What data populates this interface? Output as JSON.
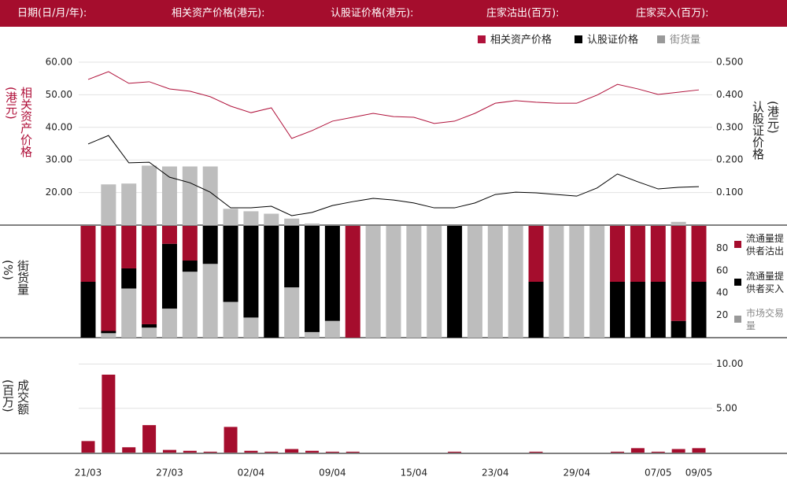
{
  "header": {
    "labels": [
      "日期(日/月/年):",
      "相关资产价格(港元):",
      "认股证价格(港元):",
      "庄家沽出(百万):",
      "庄家买入(百万):"
    ]
  },
  "chart_data": [
    {
      "type": "line",
      "ylabel": "相关资产价格(港元)",
      "y2label": "认股证价格(港元)",
      "ylim": [
        10,
        60
      ],
      "yticks": [
        {
          "value": 20,
          "label": "20.00"
        },
        {
          "value": 30,
          "label": "30.00"
        },
        {
          "value": 40,
          "label": "40.00"
        },
        {
          "value": 50,
          "label": "50.00"
        },
        {
          "value": 60,
          "label": "60.00"
        }
      ],
      "y2lim": [
        0,
        0.5
      ],
      "y2ticks": [
        {
          "value": 0.1,
          "label": "0.100"
        },
        {
          "value": 0.2,
          "label": "0.200"
        },
        {
          "value": 0.3,
          "label": "0.300"
        },
        {
          "value": 0.4,
          "label": "0.400"
        },
        {
          "value": 0.5,
          "label": "0.500"
        }
      ],
      "y3lim": [
        0,
        100
      ],
      "grid": true,
      "legend": "top-right",
      "series": [
        {
          "name": "相关资产价格",
          "color": "#b0123b",
          "values": [
            54.7,
            57.1,
            53.5,
            54.0,
            51.8,
            51.1,
            49.4,
            46.5,
            44.5,
            46.0,
            36.6,
            39.0,
            41.9,
            43.1,
            44.3,
            43.3,
            43.1,
            41.2,
            41.9,
            44.3,
            47.4,
            48.2,
            47.7,
            47.4,
            47.4,
            49.9,
            53.2,
            51.8,
            50.1,
            50.8,
            51.5
          ]
        },
        {
          "name": "认股证价格",
          "color": "#000000",
          "axis": "y2",
          "values": [
            0.249,
            0.275,
            0.191,
            0.193,
            0.147,
            0.13,
            0.101,
            0.053,
            0.053,
            0.058,
            0.029,
            0.039,
            0.06,
            0.072,
            0.082,
            0.077,
            0.068,
            0.053,
            0.053,
            0.068,
            0.094,
            0.101,
            0.099,
            0.094,
            0.089,
            0.114,
            0.157,
            0.133,
            0.111,
            0.116,
            0.118
          ]
        },
        {
          "name": "街货量",
          "color": "#bdbdbd",
          "type": "bar",
          "axis": "y3",
          "values": [
            0,
            25,
            25.5,
            36.5,
            36,
            36,
            36,
            10,
            8.5,
            7,
            4,
            1,
            0,
            0,
            0,
            0,
            0,
            0,
            0,
            0,
            0,
            0,
            0,
            0,
            0,
            0,
            0,
            0,
            0,
            2,
            0
          ]
        }
      ]
    },
    {
      "type": "stacked_bar",
      "ylabel": "街货量(%)",
      "ylim": [
        0,
        100
      ],
      "yticks": [
        20,
        40,
        60,
        80
      ],
      "legend": "right",
      "series": [
        {
          "name": "流通量提供者沽出",
          "color": "#a50d2d",
          "values": [
            50,
            94,
            38,
            88,
            16,
            31,
            0,
            0,
            0,
            0,
            0,
            0,
            0,
            100,
            0,
            0,
            0,
            0,
            0,
            0,
            0,
            0,
            50,
            0,
            0,
            0,
            50,
            50,
            50,
            85,
            50
          ]
        },
        {
          "name": "流通量提供者买入",
          "color": "#000000",
          "values": [
            50,
            2,
            18,
            3,
            58,
            10,
            34,
            68,
            82,
            100,
            55,
            95,
            85,
            0,
            0,
            0,
            0,
            0,
            100,
            0,
            0,
            0,
            50,
            0,
            0,
            0,
            50,
            50,
            50,
            15,
            50
          ]
        },
        {
          "name": "市场交易量",
          "color": "#bdbdbd",
          "values": [
            0,
            4,
            44,
            9,
            26,
            59,
            66,
            32,
            18,
            0,
            45,
            5,
            15,
            0,
            100,
            100,
            100,
            100,
            0,
            100,
            100,
            100,
            0,
            100,
            100,
            100,
            0,
            0,
            0,
            0,
            0
          ]
        }
      ]
    },
    {
      "type": "bar",
      "ylabel": "成交额(百万)",
      "color": "#a50d2d",
      "categories": [
        "21/03",
        null,
        null,
        null,
        "27/03",
        null,
        null,
        null,
        "02/04",
        null,
        null,
        null,
        "09/04",
        null,
        null,
        null,
        "15/04",
        null,
        null,
        null,
        "23/04",
        null,
        null,
        null,
        "29/04",
        null,
        null,
        null,
        "07/05",
        null,
        "09/05"
      ],
      "values": [
        1.3,
        8.8,
        0.6,
        3.1,
        0.3,
        0.2,
        0.1,
        2.9,
        0.2,
        0.1,
        0.4,
        0.2,
        0.1,
        0.1,
        0,
        0,
        0,
        0,
        0.1,
        0,
        0,
        0,
        0.1,
        0,
        0,
        0,
        0.1,
        0.5,
        0.1,
        0.4,
        0.5
      ],
      "ylim": [
        0,
        12
      ],
      "yticks": [
        {
          "value": 5,
          "label": "5.00"
        },
        {
          "value": 10,
          "label": "10.00"
        }
      ],
      "grid": true
    }
  ]
}
